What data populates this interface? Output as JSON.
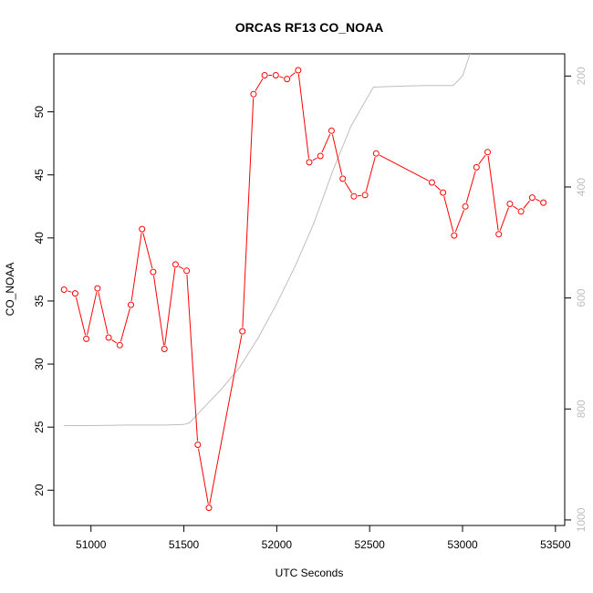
{
  "chart_data": {
    "type": "line",
    "title": "ORCAS RF13 CO_NOAA",
    "xlabel": "UTC Seconds",
    "ylabel": "CO_NOAA",
    "xlim": [
      50800,
      53550
    ],
    "ylim": [
      17.2,
      54.6
    ],
    "x_ticks": [
      51000,
      51500,
      52000,
      52500,
      53000,
      53500
    ],
    "y_ticks": [
      20,
      25,
      30,
      35,
      40,
      45,
      50
    ],
    "y2_ticks": [
      200,
      400,
      600,
      800,
      1000
    ],
    "y2lim": [
      1010,
      160
    ],
    "grid": false,
    "colors": {
      "co": "#ff0000",
      "secondary": "#bebebe"
    },
    "series": [
      {
        "axis": "left",
        "style": "line+markers",
        "color": "#ff0000",
        "x": [
          50855,
          50915,
          50975,
          51035,
          51095,
          51155,
          51215,
          51275,
          51335,
          51395,
          51455,
          51515,
          51575,
          51635,
          51815,
          51875,
          51935,
          51995,
          52055,
          52115,
          52175,
          52235,
          52295,
          52355,
          52415,
          52475,
          52535,
          52835,
          52895,
          52955,
          53015,
          53075,
          53135,
          53195,
          53255,
          53315,
          53375,
          53435
        ],
        "y": [
          35.9,
          35.6,
          32.0,
          36.0,
          32.1,
          31.5,
          34.7,
          40.7,
          37.3,
          31.2,
          37.9,
          37.4,
          23.6,
          18.6,
          32.6,
          51.4,
          52.9,
          52.9,
          52.6,
          53.3,
          46.0,
          46.5,
          48.5,
          44.7,
          43.3,
          43.4,
          46.7,
          44.4,
          43.6,
          40.2,
          42.5,
          45.6,
          46.8,
          40.3,
          42.7,
          42.1,
          43.2,
          42.8
        ]
      },
      {
        "axis": "right",
        "style": "line",
        "color": "#bebebe",
        "x": [
          50855,
          51000,
          51200,
          51400,
          51500,
          51530,
          51600,
          51700,
          51800,
          51900,
          52000,
          52100,
          52200,
          52300,
          52400,
          52520,
          52600,
          52700,
          52800,
          52950,
          53000,
          53050
        ],
        "y": [
          830,
          830,
          829,
          829,
          828,
          825,
          800,
          765,
          725,
          672,
          610,
          542,
          465,
          372,
          290,
          220,
          219,
          218,
          217,
          217,
          200,
          150
        ]
      }
    ]
  }
}
